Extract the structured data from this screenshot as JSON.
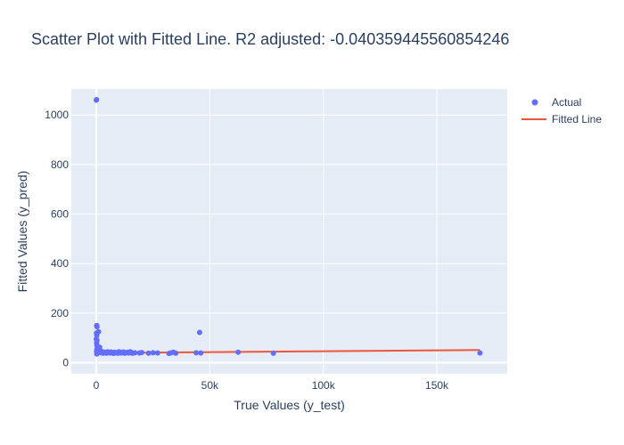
{
  "chart_data": {
    "type": "scatter",
    "title": "Scatter Plot with Fitted Line. R2 adjusted: -0.040359445560854246",
    "xlabel": "True Values (y_test)",
    "ylabel": "Fitted Values (y_pred)",
    "xlim": [
      -11000,
      181000
    ],
    "ylim": [
      -45,
      1105
    ],
    "x_ticks": [
      0,
      50000,
      100000,
      150000
    ],
    "x_tick_labels": [
      "0",
      "50k",
      "100k",
      "150k"
    ],
    "y_ticks": [
      0,
      200,
      400,
      600,
      800,
      1000
    ],
    "y_tick_labels": [
      "0",
      "200",
      "400",
      "600",
      "800",
      "1000"
    ],
    "grid": true,
    "legend_position": "top-right",
    "colors": {
      "actual": "#636efa",
      "fitted": "#ef553b",
      "plot_background": "#e5ecf6",
      "grid": "#ffffff",
      "text": "#2a3f5f"
    },
    "series": [
      {
        "name": "Actual",
        "mode": "markers",
        "x": [
          0,
          100,
          200,
          300,
          100,
          200,
          0,
          300,
          150,
          250,
          500,
          800,
          300,
          600,
          100,
          200,
          1000,
          1500,
          2000,
          2500,
          3000,
          3500,
          4000,
          4500,
          5000,
          5500,
          6000,
          6500,
          7000,
          7500,
          8000,
          8500,
          9000,
          9500,
          10000,
          10500,
          11000,
          11500,
          12000,
          12500,
          13000,
          13500,
          14000,
          14500,
          15000,
          15500,
          16000,
          17000,
          19000,
          20000,
          23000,
          25000,
          27000,
          32000,
          33000,
          34000,
          35000,
          44000,
          45500,
          46000,
          62500,
          78000,
          169000
        ],
        "y": [
          1060,
          1062,
          150,
          145,
          120,
          110,
          95,
          90,
          80,
          70,
          65,
          60,
          55,
          50,
          45,
          35,
          125,
          62,
          40,
          45,
          38,
          42,
          40,
          38,
          44,
          41,
          39,
          43,
          40,
          37,
          42,
          39,
          41,
          38,
          44,
          40,
          39,
          42,
          43,
          38,
          41,
          40,
          42,
          39,
          44,
          40,
          38,
          40,
          39,
          41,
          38,
          40,
          39,
          37,
          40,
          42,
          38,
          40,
          122,
          39,
          42,
          38,
          39
        ]
      },
      {
        "name": "Fitted Line",
        "mode": "lines",
        "x": [
          0,
          169000
        ],
        "y": [
          39,
          51
        ]
      }
    ]
  }
}
